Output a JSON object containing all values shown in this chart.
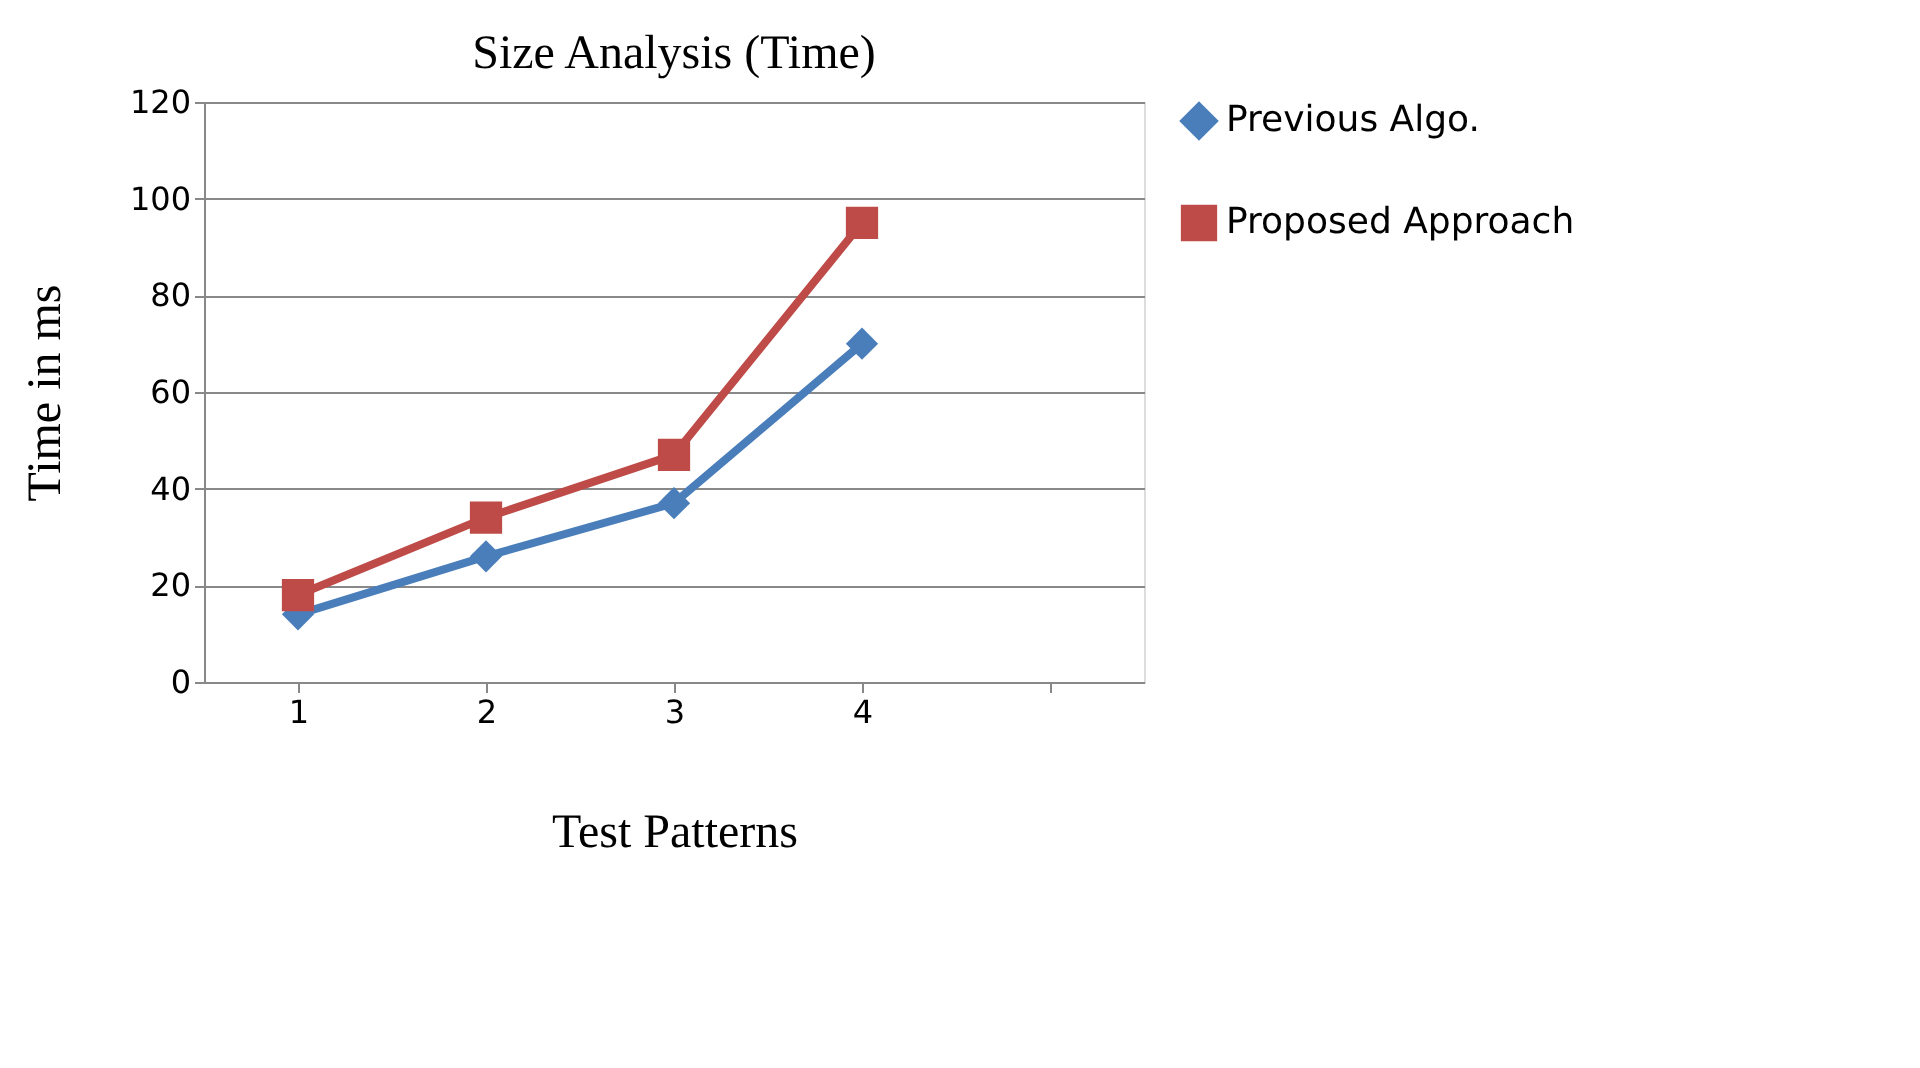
{
  "chart_data": {
    "type": "line",
    "title": "Size Analysis (Time)",
    "xlabel": "Test Patterns",
    "ylabel": "Time in ms",
    "categories": [
      "1",
      "2",
      "3",
      "4",
      null
    ],
    "series": [
      {
        "name": "Previous Algo.",
        "color": "#4a7ebb",
        "marker": "diamond",
        "values": [
          14,
          26,
          37,
          70,
          null
        ]
      },
      {
        "name": "Proposed Approach",
        "color": "#be4b48",
        "marker": "square",
        "values": [
          18,
          34,
          47,
          95,
          null
        ]
      }
    ],
    "ylim": [
      0,
      120
    ],
    "yticks": [
      0,
      20,
      40,
      60,
      80,
      100,
      120
    ],
    "grid": "y",
    "legend": "right"
  }
}
